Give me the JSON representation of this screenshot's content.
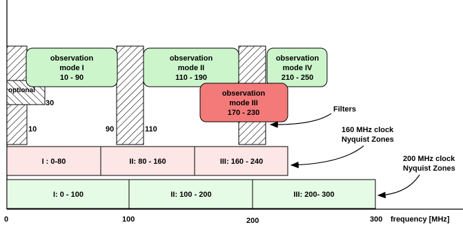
{
  "observation_modes": [
    {
      "id": "mode-1",
      "label_line1": "observation",
      "label_line2": "mode I",
      "range": "10 - 90",
      "color": "#ccf5cc"
    },
    {
      "id": "mode-2",
      "label_line1": "observation",
      "label_line2": "mode II",
      "range": "110 - 190",
      "color": "#ccf5cc"
    },
    {
      "id": "mode-3",
      "label_line1": "observation",
      "label_line2": "mode III",
      "range": "170 - 230",
      "color": "#f47a7a"
    },
    {
      "id": "mode-4",
      "label_line1": "observation",
      "label_line2": "mode IV",
      "range": "210 - 250",
      "color": "#ccf5cc"
    }
  ],
  "filter_labels": {
    "f10": "10",
    "f30": "30",
    "f90": "90",
    "f110": "110",
    "optional": "optional",
    "filters": "Filters"
  },
  "zones_160": {
    "title_line1": "160 MHz clock",
    "title_line2": "Nyquist Zones",
    "color": "#fde6e6",
    "cells": [
      "I : 0-80",
      "II: 80 - 160",
      "III: 160 - 240"
    ]
  },
  "zones_200": {
    "title_line1": "200 MHz clock",
    "title_line2": "Nyquist Zones",
    "color": "#e6fbe6",
    "cells": [
      "I: 0 - 100",
      "II: 100 - 200",
      "III: 200- 300"
    ]
  },
  "axis": {
    "label": "frequency [MHz]",
    "ticks": [
      "0",
      "100",
      "200",
      "300"
    ]
  }
}
